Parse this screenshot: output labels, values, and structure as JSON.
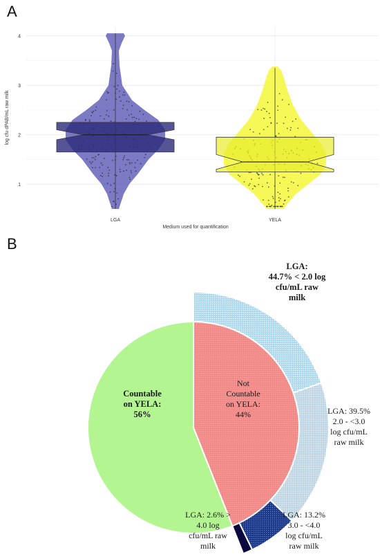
{
  "panels": {
    "a": "A",
    "b": "B"
  },
  "chart_data": [
    {
      "type": "violin-box",
      "ylabel": "log cfu dPAB/mL raw milk",
      "xlabel": "Medium used for quantification",
      "categories": [
        "LGA",
        "YELA"
      ],
      "yticks": [
        "1",
        "2",
        "3",
        "4"
      ],
      "ylim": [
        0.5,
        4.1
      ],
      "colors": {
        "LGA": "#4a47ad",
        "YELA": "#f2f51d"
      },
      "box": [
        {
          "name": "LGA",
          "q1": 1.65,
          "median": 2.0,
          "q3": 2.25,
          "notch_low": 1.9,
          "notch_high": 2.1,
          "min": 0.5,
          "max": 4.05
        },
        {
          "name": "YELA",
          "q1": 1.25,
          "median": 1.45,
          "q3": 1.95,
          "notch_low": 1.3,
          "notch_high": 1.6,
          "min": 0.5,
          "max": 3.35
        }
      ]
    },
    {
      "type": "pie",
      "inner": [
        {
          "label_lines": [
            "Not",
            "Countable",
            "on YELA:",
            "44%"
          ],
          "value": 44,
          "color": "#f5918e"
        },
        {
          "label_lines": [
            "Countable",
            "on YELA:",
            "56%"
          ],
          "value": 56,
          "color": "#b3f590"
        }
      ],
      "outer": [
        {
          "label_lines": [
            "LGA:",
            "44.7% < 2.0 log",
            "cfu/mL raw",
            "milk"
          ],
          "value": 44.7,
          "color": "#a9d8ee"
        },
        {
          "label_lines": [
            "LGA: 39.5%",
            "2.0 - <3.0",
            "log cfu/mL",
            "raw milk"
          ],
          "value": 39.5,
          "color": "#b5cfe0"
        },
        {
          "label_lines": [
            "LGA: 13.2%",
            "3.0 - <4.0",
            "log cfu/mL",
            "raw milk"
          ],
          "value": 13.2,
          "color": "#1d3a8a"
        },
        {
          "label_lines": [
            "LGA: 2.6% >",
            "4.0 log",
            "cfu/mL raw",
            "milk"
          ],
          "value": 2.6,
          "color": "#0a0a40"
        }
      ]
    }
  ]
}
